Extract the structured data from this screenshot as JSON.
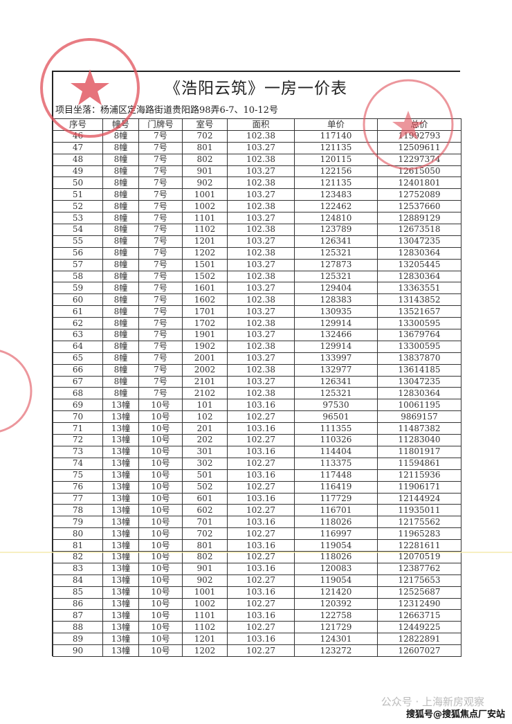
{
  "document": {
    "title": "《浩阳云筑》一房一价表",
    "project_location": "项目坐落：杨浦区定海路街道贵阳路98弄6-7、10-12号",
    "stamp_color": "#e0505a",
    "columns": [
      "序号",
      "幢号",
      "门牌号",
      "室号",
      "面积",
      "单价",
      "总价"
    ],
    "rows": [
      [
        "46",
        "8幢",
        "7号",
        "702",
        "102.38",
        "117140",
        "11992793"
      ],
      [
        "47",
        "8幢",
        "7号",
        "801",
        "103.27",
        "121135",
        "12509611"
      ],
      [
        "48",
        "8幢",
        "7号",
        "802",
        "102.38",
        "120115",
        "12297374"
      ],
      [
        "49",
        "8幢",
        "7号",
        "901",
        "103.27",
        "122156",
        "12615050"
      ],
      [
        "50",
        "8幢",
        "7号",
        "902",
        "102.38",
        "121135",
        "12401801"
      ],
      [
        "51",
        "8幢",
        "7号",
        "1001",
        "103.27",
        "123483",
        "12752089"
      ],
      [
        "52",
        "8幢",
        "7号",
        "1002",
        "102.38",
        "122462",
        "12537660"
      ],
      [
        "53",
        "8幢",
        "7号",
        "1101",
        "103.27",
        "124810",
        "12889129"
      ],
      [
        "54",
        "8幢",
        "7号",
        "1102",
        "102.38",
        "123789",
        "12673518"
      ],
      [
        "55",
        "8幢",
        "7号",
        "1201",
        "103.27",
        "126341",
        "13047235"
      ],
      [
        "56",
        "8幢",
        "7号",
        "1202",
        "102.38",
        "125321",
        "12830364"
      ],
      [
        "57",
        "8幢",
        "7号",
        "1501",
        "103.27",
        "127873",
        "13205445"
      ],
      [
        "58",
        "8幢",
        "7号",
        "1502",
        "102.38",
        "125321",
        "12830364"
      ],
      [
        "59",
        "8幢",
        "7号",
        "1601",
        "103.27",
        "129404",
        "13363551"
      ],
      [
        "60",
        "8幢",
        "7号",
        "1602",
        "102.38",
        "128383",
        "13143852"
      ],
      [
        "61",
        "8幢",
        "7号",
        "1701",
        "103.27",
        "130935",
        "13521657"
      ],
      [
        "62",
        "8幢",
        "7号",
        "1702",
        "102.38",
        "129914",
        "13300595"
      ],
      [
        "63",
        "8幢",
        "7号",
        "1901",
        "103.27",
        "132466",
        "13679764"
      ],
      [
        "64",
        "8幢",
        "7号",
        "1902",
        "102.38",
        "129914",
        "13300595"
      ],
      [
        "65",
        "8幢",
        "7号",
        "2001",
        "103.27",
        "133997",
        "13837870"
      ],
      [
        "66",
        "8幢",
        "7号",
        "2002",
        "102.38",
        "132977",
        "13614185"
      ],
      [
        "67",
        "8幢",
        "7号",
        "2101",
        "103.27",
        "126341",
        "13047235"
      ],
      [
        "68",
        "8幢",
        "7号",
        "2102",
        "102.38",
        "125321",
        "12830364"
      ],
      [
        "69",
        "13幢",
        "10号",
        "101",
        "103.16",
        "97530",
        "10061195"
      ],
      [
        "70",
        "13幢",
        "10号",
        "102",
        "102.27",
        "96501",
        "9869157"
      ],
      [
        "71",
        "13幢",
        "10号",
        "201",
        "103.16",
        "111355",
        "11487382"
      ],
      [
        "72",
        "13幢",
        "10号",
        "202",
        "102.27",
        "110326",
        "11283040"
      ],
      [
        "73",
        "13幢",
        "10号",
        "301",
        "103.16",
        "114404",
        "11801917"
      ],
      [
        "74",
        "13幢",
        "10号",
        "302",
        "102.27",
        "113375",
        "11594861"
      ],
      [
        "75",
        "13幢",
        "10号",
        "501",
        "103.16",
        "117448",
        "12115936"
      ],
      [
        "76",
        "13幢",
        "10号",
        "502",
        "102.27",
        "116419",
        "11906171"
      ],
      [
        "77",
        "13幢",
        "10号",
        "601",
        "103.16",
        "117729",
        "12144924"
      ],
      [
        "78",
        "13幢",
        "10号",
        "602",
        "102.27",
        "116701",
        "11935011"
      ],
      [
        "79",
        "13幢",
        "10号",
        "701",
        "103.16",
        "118026",
        "12175562"
      ],
      [
        "80",
        "13幢",
        "10号",
        "702",
        "102.27",
        "116997",
        "11965283"
      ],
      [
        "81",
        "13幢",
        "10号",
        "801",
        "103.16",
        "119054",
        "12281611"
      ],
      [
        "82",
        "13幢",
        "10号",
        "802",
        "102.27",
        "118026",
        "12070519"
      ],
      [
        "83",
        "13幢",
        "10号",
        "901",
        "103.16",
        "120083",
        "12387762"
      ],
      [
        "84",
        "13幢",
        "10号",
        "902",
        "102.27",
        "119054",
        "12175653"
      ],
      [
        "85",
        "13幢",
        "10号",
        "1001",
        "103.16",
        "121420",
        "12525687"
      ],
      [
        "86",
        "13幢",
        "10号",
        "1002",
        "102.27",
        "120392",
        "12312490"
      ],
      [
        "87",
        "13幢",
        "10号",
        "1101",
        "103.16",
        "122758",
        "12663715"
      ],
      [
        "88",
        "13幢",
        "10号",
        "1102",
        "102.27",
        "121729",
        "12449225"
      ],
      [
        "89",
        "13幢",
        "10号",
        "1201",
        "103.16",
        "124301",
        "12822891"
      ],
      [
        "90",
        "13幢",
        "10号",
        "1202",
        "102.27",
        "123272",
        "12607027"
      ]
    ]
  },
  "watermarks": {
    "wechat": "公众号 · 上海新房观察",
    "sohu": "搜狐号@搜狐焦点厂安站"
  }
}
